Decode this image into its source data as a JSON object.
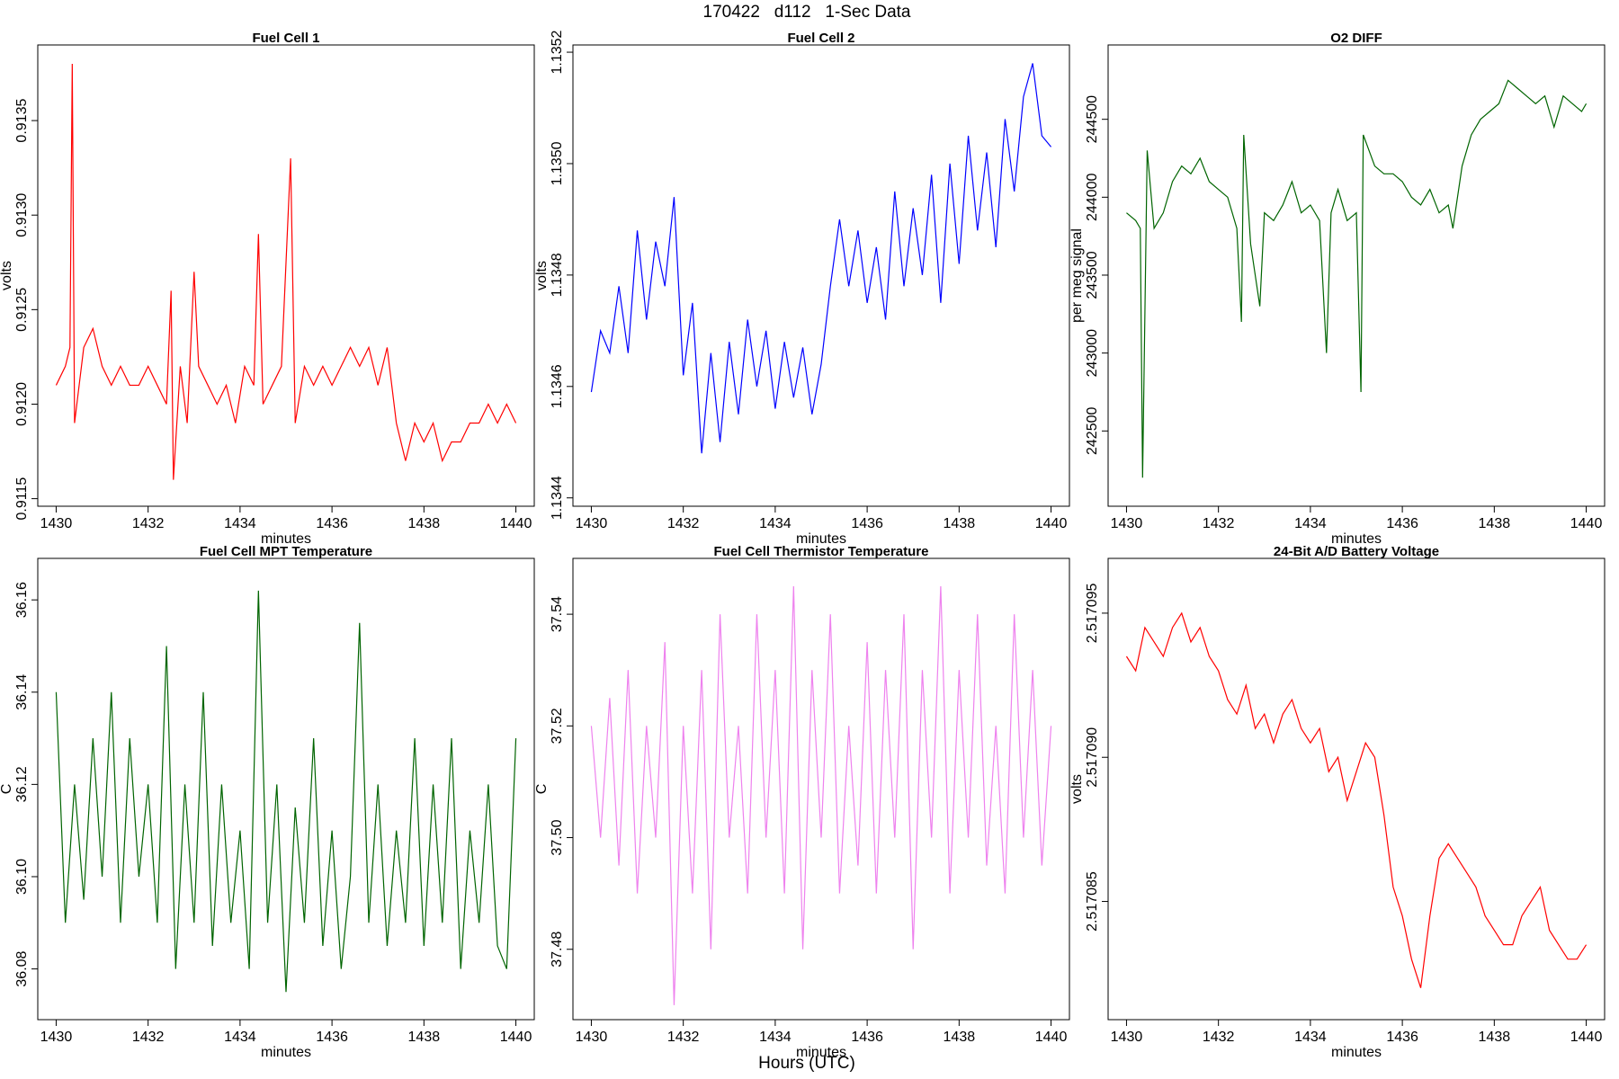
{
  "title": "170422   d112   1-Sec Data",
  "xlabel": "Hours (UTC)",
  "chart_data": [
    {
      "type": "line",
      "title": "Fuel Cell 1",
      "xlabel": "minutes",
      "ylabel": "volts",
      "color": "#ff0000",
      "xlim": [
        1429.6,
        1440.4
      ],
      "ylim": [
        0.91146,
        0.9139
      ],
      "xticks": [
        1430,
        1432,
        1434,
        1436,
        1438,
        1440
      ],
      "yticks": [
        0.9115,
        {
          "value": 0.912,
          "label": "0.9120"
        },
        0.9125,
        {
          "value": 0.913,
          "label": "0.9130"
        },
        0.9135
      ],
      "x": [
        1430,
        1430.2,
        1430.3,
        1430.35,
        1430.4,
        1430.6,
        1430.8,
        1431,
        1431.2,
        1431.4,
        1431.6,
        1431.8,
        1432,
        1432.2,
        1432.4,
        1432.5,
        1432.55,
        1432.7,
        1432.85,
        1433,
        1433.1,
        1433.3,
        1433.5,
        1433.7,
        1433.9,
        1434.1,
        1434.3,
        1434.4,
        1434.5,
        1434.7,
        1434.9,
        1435.1,
        1435.2,
        1435.4,
        1435.6,
        1435.8,
        1436,
        1436.2,
        1436.4,
        1436.6,
        1436.8,
        1437,
        1437.2,
        1437.4,
        1437.6,
        1437.8,
        1438,
        1438.2,
        1438.4,
        1438.6,
        1438.8,
        1439,
        1439.2,
        1439.4,
        1439.6,
        1439.8,
        1440
      ],
      "values": [
        0.9121,
        0.9122,
        0.9123,
        0.9138,
        0.9119,
        0.9123,
        0.9124,
        0.9122,
        0.9121,
        0.9122,
        0.9121,
        0.9121,
        0.9122,
        0.9121,
        0.912,
        0.9126,
        0.9116,
        0.9122,
        0.9119,
        0.9127,
        0.9122,
        0.9121,
        0.912,
        0.9121,
        0.9119,
        0.9122,
        0.9121,
        0.9129,
        0.912,
        0.9121,
        0.9122,
        0.9133,
        0.9119,
        0.9122,
        0.9121,
        0.9122,
        0.9121,
        0.9122,
        0.9123,
        0.9122,
        0.9123,
        0.9121,
        0.9123,
        0.9119,
        0.9117,
        0.9119,
        0.9118,
        0.9119,
        0.9117,
        0.9118,
        0.9118,
        0.9119,
        0.9119,
        0.912,
        0.9119,
        0.912,
        0.9119
      ]
    },
    {
      "type": "line",
      "title": "Fuel Cell 2",
      "xlabel": "minutes",
      "ylabel": "volts",
      "color": "#0000ff",
      "xlim": [
        1429.6,
        1440.4
      ],
      "ylim": [
        1.134385,
        1.135213
      ],
      "xticks": [
        1430,
        1432,
        1434,
        1436,
        1438,
        1440
      ],
      "yticks": [
        1.1344,
        1.1346,
        1.1348,
        {
          "value": 1.135,
          "label": "1.1350"
        },
        1.1352
      ],
      "x": [
        1430,
        1430.2,
        1430.4,
        1430.6,
        1430.8,
        1431,
        1431.2,
        1431.4,
        1431.6,
        1431.8,
        1432,
        1432.2,
        1432.4,
        1432.6,
        1432.8,
        1433,
        1433.2,
        1433.4,
        1433.6,
        1433.8,
        1434,
        1434.2,
        1434.4,
        1434.6,
        1434.8,
        1435,
        1435.2,
        1435.4,
        1435.6,
        1435.8,
        1436,
        1436.2,
        1436.4,
        1436.6,
        1436.8,
        1437,
        1437.2,
        1437.4,
        1437.6,
        1437.8,
        1438,
        1438.2,
        1438.4,
        1438.6,
        1438.8,
        1439,
        1439.2,
        1439.4,
        1439.6,
        1439.8,
        1440
      ],
      "values": [
        1.13459,
        1.1347,
        1.13466,
        1.13478,
        1.13466,
        1.13488,
        1.13472,
        1.13486,
        1.13478,
        1.13494,
        1.13462,
        1.13475,
        1.13448,
        1.13466,
        1.1345,
        1.13468,
        1.13455,
        1.13472,
        1.1346,
        1.1347,
        1.13456,
        1.13468,
        1.13458,
        1.13467,
        1.13455,
        1.13464,
        1.13478,
        1.1349,
        1.13478,
        1.13488,
        1.13475,
        1.13485,
        1.13472,
        1.13495,
        1.13478,
        1.13492,
        1.1348,
        1.13498,
        1.13475,
        1.135,
        1.13482,
        1.13505,
        1.13488,
        1.13502,
        1.13485,
        1.13508,
        1.13495,
        1.13512,
        1.13518,
        1.13505,
        1.13503
      ]
    },
    {
      "type": "line",
      "title": "O2 DIFF",
      "xlabel": "minutes",
      "ylabel": "per meg signal",
      "color": "#006400",
      "xlim": [
        1429.6,
        1440.4
      ],
      "ylim": [
        242017,
        244977
      ],
      "xticks": [
        1430,
        1432,
        1434,
        1436,
        1438,
        1440
      ],
      "yticks": [
        242500,
        243000,
        243500,
        244000,
        244500
      ],
      "x": [
        1430,
        1430.2,
        1430.3,
        1430.35,
        1430.45,
        1430.6,
        1430.8,
        1431,
        1431.2,
        1431.4,
        1431.6,
        1431.8,
        1432,
        1432.2,
        1432.4,
        1432.5,
        1432.55,
        1432.7,
        1432.9,
        1433,
        1433.2,
        1433.4,
        1433.6,
        1433.8,
        1434,
        1434.2,
        1434.35,
        1434.45,
        1434.6,
        1434.8,
        1435,
        1435.1,
        1435.15,
        1435.4,
        1435.6,
        1435.8,
        1436,
        1436.2,
        1436.4,
        1436.6,
        1436.8,
        1437,
        1437.1,
        1437.3,
        1437.5,
        1437.7,
        1437.9,
        1438.1,
        1438.3,
        1438.5,
        1438.7,
        1438.9,
        1439.1,
        1439.3,
        1439.5,
        1439.7,
        1439.9,
        1440
      ],
      "values": [
        243900,
        243850,
        243800,
        242200,
        244300,
        243800,
        243900,
        244100,
        244200,
        244150,
        244250,
        244100,
        244050,
        244000,
        243800,
        243200,
        244400,
        243700,
        243300,
        243900,
        243850,
        243950,
        244100,
        243900,
        243950,
        243850,
        243000,
        243900,
        244050,
        243850,
        243900,
        242750,
        244400,
        244200,
        244150,
        244150,
        244100,
        244000,
        243950,
        244050,
        243900,
        243950,
        243800,
        244200,
        244400,
        244500,
        244550,
        244600,
        244750,
        244700,
        244650,
        244600,
        244650,
        244450,
        244650,
        244600,
        244550,
        244600
      ]
    },
    {
      "type": "line",
      "title": "Fuel Cell MPT Temperature",
      "xlabel": "minutes",
      "ylabel": "C",
      "color": "#006400",
      "xlim": [
        1429.6,
        1440.4
      ],
      "ylim": [
        36.069,
        36.169
      ],
      "xticks": [
        1430,
        1432,
        1434,
        1436,
        1438,
        1440
      ],
      "yticks": [
        36.08,
        {
          "value": 36.1,
          "label": "36.10"
        },
        36.12,
        36.14,
        36.16
      ],
      "x": [
        1430,
        1430.2,
        1430.4,
        1430.6,
        1430.8,
        1431,
        1431.2,
        1431.4,
        1431.6,
        1431.8,
        1432,
        1432.2,
        1432.4,
        1432.6,
        1432.8,
        1433,
        1433.2,
        1433.4,
        1433.6,
        1433.8,
        1434,
        1434.2,
        1434.4,
        1434.6,
        1434.8,
        1435,
        1435.2,
        1435.4,
        1435.6,
        1435.8,
        1436,
        1436.2,
        1436.4,
        1436.6,
        1436.8,
        1437,
        1437.2,
        1437.4,
        1437.6,
        1437.8,
        1438,
        1438.2,
        1438.4,
        1438.6,
        1438.8,
        1439,
        1439.2,
        1439.4,
        1439.6,
        1439.8,
        1440
      ],
      "values": [
        36.14,
        36.09,
        36.12,
        36.095,
        36.13,
        36.1,
        36.14,
        36.09,
        36.13,
        36.1,
        36.12,
        36.09,
        36.15,
        36.08,
        36.12,
        36.09,
        36.14,
        36.085,
        36.12,
        36.09,
        36.11,
        36.08,
        36.162,
        36.09,
        36.12,
        36.075,
        36.115,
        36.09,
        36.13,
        36.085,
        36.11,
        36.08,
        36.1,
        36.155,
        36.09,
        36.12,
        36.085,
        36.11,
        36.09,
        36.13,
        36.085,
        36.12,
        36.09,
        36.13,
        36.08,
        36.11,
        36.09,
        36.12,
        36.085,
        36.08,
        36.13
      ]
    },
    {
      "type": "line",
      "title": "Fuel Cell Thermistor Temperature",
      "xlabel": "minutes",
      "ylabel": "C",
      "color": "#ee82ee",
      "xlim": [
        1429.6,
        1440.4
      ],
      "ylim": [
        37.4674,
        37.55
      ],
      "xticks": [
        1430,
        1432,
        1434,
        1436,
        1438,
        1440
      ],
      "yticks": [
        37.48,
        {
          "value": 37.5,
          "label": "37.50"
        },
        37.52,
        37.54
      ],
      "x": [
        1430,
        1430.2,
        1430.4,
        1430.6,
        1430.8,
        1431,
        1431.2,
        1431.4,
        1431.6,
        1431.8,
        1432,
        1432.2,
        1432.4,
        1432.6,
        1432.8,
        1433,
        1433.2,
        1433.4,
        1433.6,
        1433.8,
        1434,
        1434.2,
        1434.4,
        1434.6,
        1434.8,
        1435,
        1435.2,
        1435.4,
        1435.6,
        1435.8,
        1436,
        1436.2,
        1436.4,
        1436.6,
        1436.8,
        1437,
        1437.2,
        1437.4,
        1437.6,
        1437.8,
        1438,
        1438.2,
        1438.4,
        1438.6,
        1438.8,
        1439,
        1439.2,
        1439.4,
        1439.6,
        1439.8,
        1440
      ],
      "values": [
        37.52,
        37.5,
        37.525,
        37.495,
        37.53,
        37.49,
        37.52,
        37.5,
        37.535,
        37.47,
        37.52,
        37.49,
        37.53,
        37.48,
        37.54,
        37.5,
        37.52,
        37.49,
        37.54,
        37.5,
        37.53,
        37.49,
        37.545,
        37.48,
        37.53,
        37.5,
        37.54,
        37.49,
        37.52,
        37.495,
        37.535,
        37.49,
        37.53,
        37.5,
        37.54,
        37.48,
        37.53,
        37.5,
        37.545,
        37.49,
        37.53,
        37.5,
        37.54,
        37.495,
        37.52,
        37.49,
        37.54,
        37.5,
        37.53,
        37.495,
        37.52
      ]
    },
    {
      "type": "line",
      "title": "24-Bit A/D Battery Voltage",
      "xlabel": "minutes",
      "ylabel": "volts",
      "color": "#ff0000",
      "xlim": [
        1429.6,
        1440.4
      ],
      "ylim": [
        2.5170809,
        2.5170969
      ],
      "xticks": [
        1430,
        1432,
        1434,
        1436,
        1438,
        1440
      ],
      "yticks": [
        2.517085,
        {
          "value": 2.51709,
          "label": "2.517090"
        },
        2.517095
      ],
      "x": [
        1430,
        1430.2,
        1430.4,
        1430.6,
        1430.8,
        1431,
        1431.2,
        1431.4,
        1431.6,
        1431.8,
        1432,
        1432.2,
        1432.4,
        1432.6,
        1432.8,
        1433,
        1433.2,
        1433.4,
        1433.6,
        1433.8,
        1434,
        1434.2,
        1434.4,
        1434.6,
        1434.8,
        1435,
        1435.2,
        1435.4,
        1435.6,
        1435.8,
        1436,
        1436.2,
        1436.4,
        1436.6,
        1436.8,
        1437,
        1437.2,
        1437.4,
        1437.6,
        1437.8,
        1438,
        1438.2,
        1438.4,
        1438.6,
        1438.8,
        1439,
        1439.2,
        1439.4,
        1439.6,
        1439.8,
        1440
      ],
      "values": [
        2.5170935,
        2.517093,
        2.5170945,
        2.517094,
        2.5170935,
        2.5170945,
        2.517095,
        2.517094,
        2.5170945,
        2.5170935,
        2.517093,
        2.517092,
        2.5170915,
        2.5170925,
        2.517091,
        2.5170915,
        2.5170905,
        2.5170915,
        2.517092,
        2.517091,
        2.5170905,
        2.517091,
        2.5170895,
        2.51709,
        2.5170885,
        2.5170895,
        2.5170905,
        2.51709,
        2.517088,
        2.5170855,
        2.5170845,
        2.517083,
        2.517082,
        2.5170845,
        2.5170865,
        2.517087,
        2.5170865,
        2.517086,
        2.5170855,
        2.5170845,
        2.517084,
        2.5170835,
        2.5170835,
        2.5170845,
        2.517085,
        2.5170855,
        2.517084,
        2.5170835,
        2.517083,
        2.517083,
        2.5170835
      ]
    }
  ]
}
